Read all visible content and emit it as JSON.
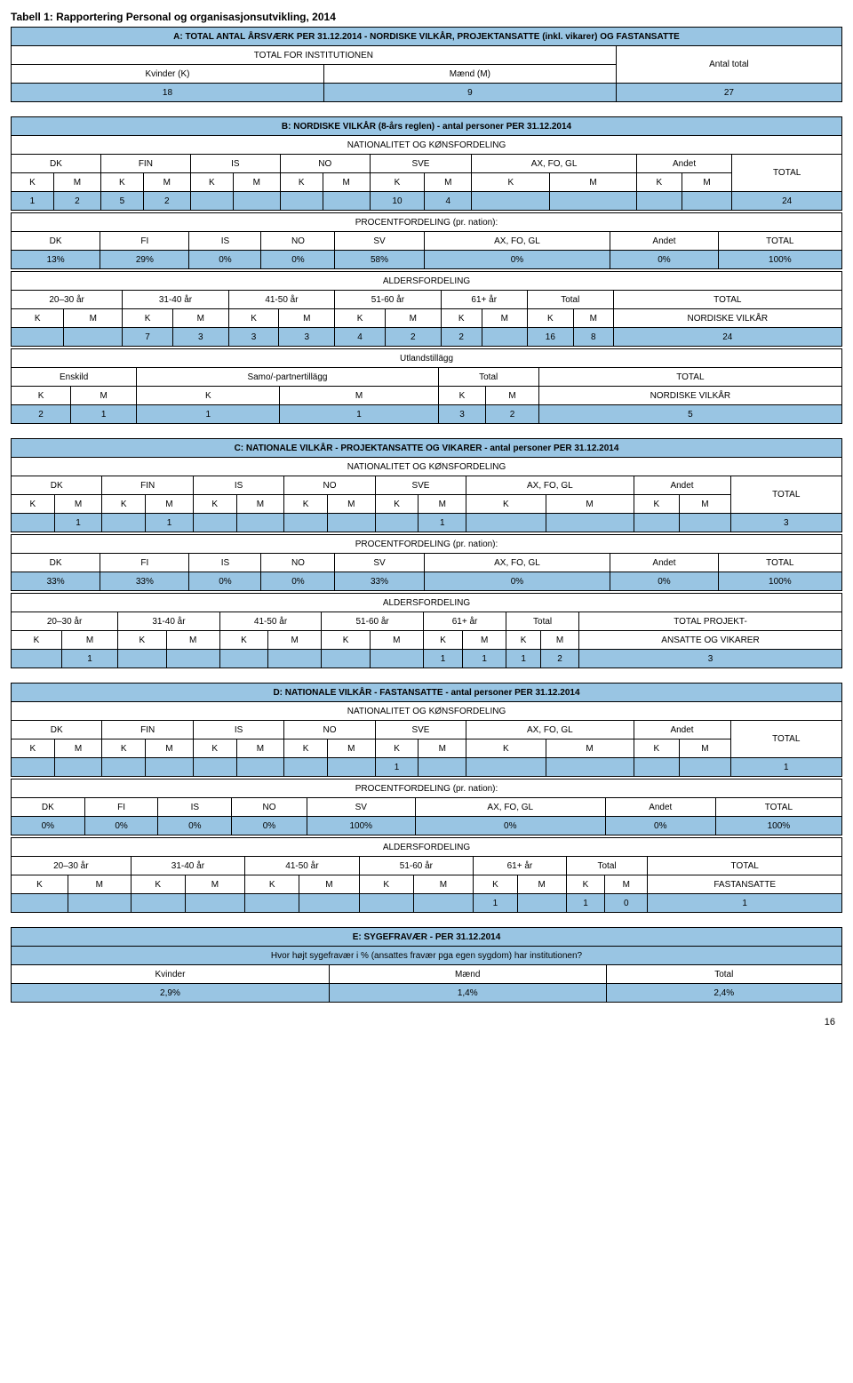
{
  "page": {
    "title": "Tabell 1: Rapportering Personal og organisasjonsutvikling, 2014",
    "footer": "16"
  },
  "colors": {
    "header_blue": "#99c5e3",
    "border": "#000000",
    "bg": "#ffffff"
  },
  "A": {
    "header": "A: TOTAL ANTAL ÅRSVÆRK PER 31.12.2014 - NORDISKE VILKÅR, PROJEKTANSATTE (inkl. vikarer) OG FASTANSATTE",
    "sub1": "TOTAL FOR INSTITUTIONEN",
    "sub2": "Antal total",
    "cols": [
      "Kvinder (K)",
      "Mænd (M)"
    ],
    "vals": [
      "18",
      "9",
      "27"
    ]
  },
  "B": {
    "header": "B: NORDISKE VILKÅR (8-års reglen) - antal personer PER 31.12.2014",
    "natkons": "NATIONALITET OG KØNSFORDELING",
    "cols": [
      "DK",
      "FIN",
      "IS",
      "NO",
      "SVE",
      "AX, FO, GL",
      "Andet"
    ],
    "km": [
      "K",
      "M",
      "K",
      "M",
      "K",
      "M",
      "K",
      "M",
      "K",
      "M",
      "K",
      "M",
      "K",
      "M"
    ],
    "total": "TOTAL",
    "vals": {
      "c0": "1",
      "c1": "2",
      "c2": "5",
      "c3": "2",
      "c8": "10",
      "c9": "4",
      "tot": "24"
    },
    "pf": {
      "label": "PROCENTFORDELING (pr. nation):",
      "cols": [
        "DK",
        "FI",
        "IS",
        "NO",
        "SV",
        "AX, FO, GL",
        "Andet",
        "TOTAL"
      ],
      "vals": [
        "13%",
        "29%",
        "0%",
        "0%",
        "58%",
        "0%",
        "0%",
        "100%"
      ]
    },
    "af": {
      "label": "ALDERSFORDELING",
      "cols": [
        "20–30 år",
        "31-40 år",
        "41-50 år",
        "51-60 år",
        "61+ år",
        "Total"
      ],
      "tot": "TOTAL",
      "tot2": "NORDISKE VILKÅR",
      "vals": {
        "c2": "7",
        "c3": "3",
        "c4": "3",
        "c5": "3",
        "c6": "4",
        "c7": "2",
        "c8": "2",
        "c10": "16",
        "c11": "8",
        "tot": "24"
      }
    },
    "ut": {
      "label": "Utlandstillägg",
      "cols": [
        "Enskild",
        "Samo/-partnertillägg",
        "Total"
      ],
      "tot": "TOTAL",
      "tot2": "NORDISKE VILKÅR",
      "km": [
        "K",
        "M",
        "K",
        "M",
        "K",
        "M"
      ],
      "vals": [
        "2",
        "1",
        "1",
        "1",
        "3",
        "2",
        "5"
      ]
    }
  },
  "C": {
    "header": "C: NATIONALE VILKÅR - PROJEKTANSATTE OG VIKARER - antal personer PER 31.12.2014",
    "natkons": "NATIONALITET OG KØNSFORDELING",
    "cols": [
      "DK",
      "FIN",
      "IS",
      "NO",
      "SVE",
      "AX, FO, GL",
      "Andet"
    ],
    "total": "TOTAL",
    "km": [
      "K",
      "M",
      "K",
      "M",
      "K",
      "M",
      "K",
      "M",
      "K",
      "M",
      "K",
      "M",
      "K",
      "M"
    ],
    "vals": {
      "c1": "1",
      "c3": "1",
      "c9": "1",
      "tot": "3"
    },
    "pf": {
      "label": "PROCENTFORDELING (pr. nation):",
      "cols": [
        "DK",
        "FI",
        "IS",
        "NO",
        "SV",
        "AX, FO, GL",
        "Andet",
        "TOTAL"
      ],
      "vals": [
        "33%",
        "33%",
        "0%",
        "0%",
        "33%",
        "0%",
        "0%",
        "100%"
      ]
    },
    "af": {
      "label": "ALDERSFORDELING",
      "cols": [
        "20–30 år",
        "31-40 år",
        "41-50 år",
        "51-60 år",
        "61+ år",
        "Total"
      ],
      "tot": "TOTAL PROJEKT-",
      "tot2": "ANSATTE OG VIKARER",
      "vals": {
        "c1": "1",
        "c8": "1",
        "c9": "1",
        "c10": "1",
        "c11": "2",
        "tot": "3"
      }
    }
  },
  "D": {
    "header": "D: NATIONALE VILKÅR - FASTANSATTE - antal personer PER 31.12.2014",
    "natkons": "NATIONALITET OG KØNSFORDELING",
    "cols": [
      "DK",
      "FIN",
      "IS",
      "NO",
      "SVE",
      "AX, FO, GL",
      "Andet"
    ],
    "total": "TOTAL",
    "km": [
      "K",
      "M",
      "K",
      "M",
      "K",
      "M",
      "K",
      "M",
      "K",
      "M",
      "K",
      "M",
      "K",
      "M"
    ],
    "vals": {
      "c8": "1",
      "tot": "1"
    },
    "pf": {
      "label": "PROCENTFORDELING (pr. nation):",
      "cols": [
        "DK",
        "FI",
        "IS",
        "NO",
        "SV",
        "AX, FO, GL",
        "Andet",
        "TOTAL"
      ],
      "vals": [
        "0%",
        "0%",
        "0%",
        "0%",
        "100%",
        "0%",
        "0%",
        "100%"
      ]
    },
    "af": {
      "label": "ALDERSFORDELING",
      "cols": [
        "20–30 år",
        "31-40 år",
        "41-50 år",
        "51-60 år",
        "61+ år",
        "Total"
      ],
      "tot": "TOTAL",
      "tot2": "FASTANSATTE",
      "vals": {
        "c8": "1",
        "c10": "1",
        "c11": "0",
        "tot": "1"
      }
    }
  },
  "E": {
    "header": "E: SYGEFRAVÆR - PER 31.12.2014",
    "sub": "Hvor højt sygefravær i % (ansattes fravær pga egen sygdom) har institutionen?",
    "cols": [
      "Kvinder",
      "Mænd",
      "Total"
    ],
    "vals": [
      "2,9%",
      "1,4%",
      "2,4%"
    ]
  }
}
